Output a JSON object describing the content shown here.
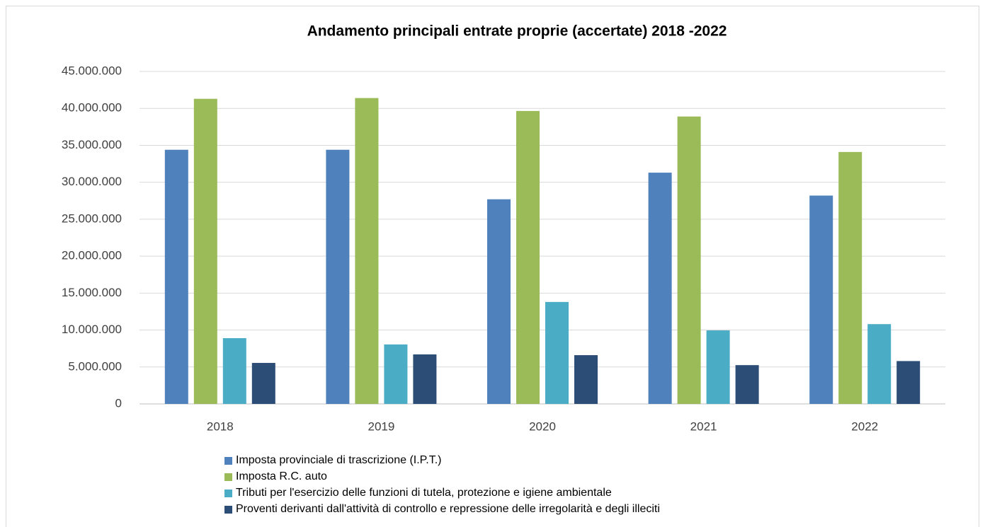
{
  "chart_data": {
    "type": "bar",
    "title": "Andamento principali  entrate  proprie (accertate)  2018 -2022",
    "categories": [
      "2018",
      "2019",
      "2020",
      "2021",
      "2022"
    ],
    "series": [
      {
        "name": "Imposta provinciale di trascrizione (I.P.T.)",
        "color": "#4f81bd",
        "values": [
          34400000,
          34400000,
          27700000,
          31300000,
          28200000
        ]
      },
      {
        "name": "Imposta R.C. auto",
        "color": "#9bbb59",
        "values": [
          41300000,
          41400000,
          39650000,
          38900000,
          34100000
        ]
      },
      {
        "name": "Tributi per l'esercizio delle funzioni di tutela, protezione e igiene ambientale",
        "color": "#4bacc6",
        "values": [
          8900000,
          8050000,
          13800000,
          9950000,
          10800000
        ]
      },
      {
        "name": "Proventi derivanti dall'attività di controllo e repressione delle irregolarità e degli illeciti",
        "color": "#2c4d75",
        "values": [
          5550000,
          6700000,
          6600000,
          5250000,
          5800000
        ]
      }
    ],
    "ylim": [
      0,
      45000000
    ],
    "yticks": [
      0,
      {
        "value": 5000000,
        "label": "5.000.000"
      },
      {
        "value": 10000000,
        "label": "10.000.000"
      },
      {
        "value": 15000000,
        "label": "15.000.000"
      },
      {
        "value": 20000000,
        "label": "20.000.000"
      },
      {
        "value": 25000000,
        "label": "25.000.000"
      },
      {
        "value": 30000000,
        "label": "30.000.000"
      },
      {
        "value": 35000000,
        "label": "35.000.000"
      },
      {
        "value": 40000000,
        "label": "40.000.000"
      },
      {
        "value": 45000000,
        "label": "45.000.000"
      }
    ],
    "grid": true,
    "legend": "bottom"
  }
}
